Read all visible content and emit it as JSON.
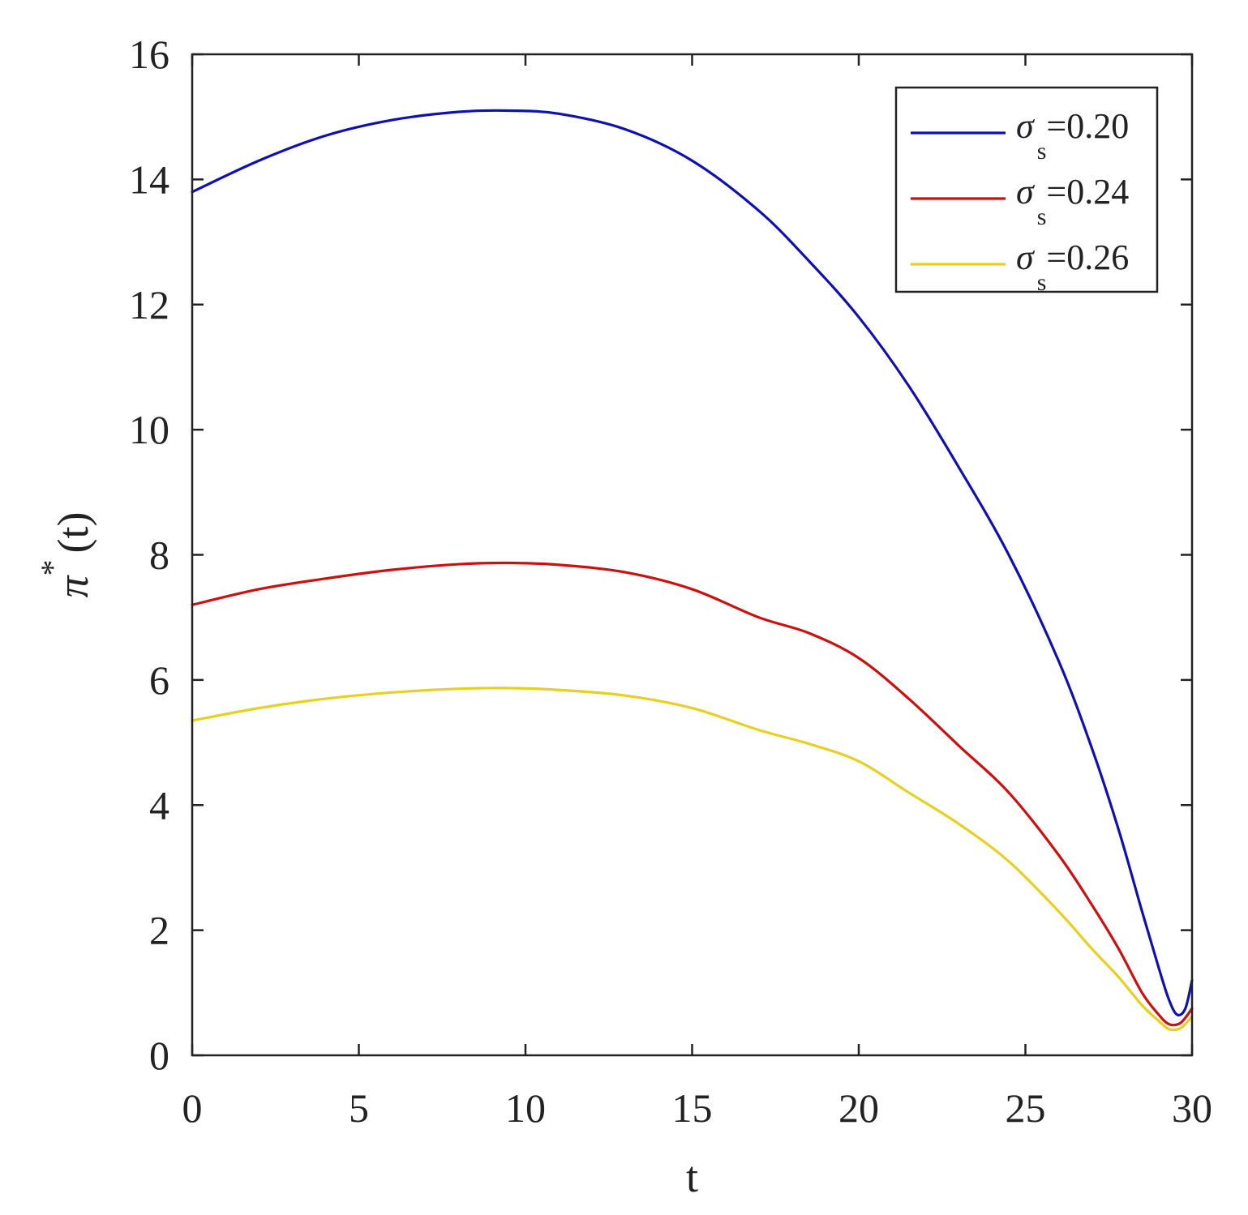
{
  "chart_data": {
    "type": "line",
    "xlabel": "t",
    "ylabel": {
      "symbol": "π",
      "superscript": "*",
      "suffix": "(t)"
    },
    "xlim": [
      0,
      30
    ],
    "ylim": [
      0,
      16
    ],
    "xticks": [
      0,
      5,
      10,
      15,
      20,
      25,
      30
    ],
    "yticks": [
      0,
      2,
      4,
      6,
      8,
      10,
      12,
      14,
      16
    ],
    "grid": false,
    "legend_position": "top-right",
    "series": [
      {
        "name": "σ_s=0.20",
        "legend": {
          "symbol": "σ",
          "sub": "s",
          "value": "=0.20"
        },
        "color": "#1010b0",
        "x": [
          0,
          2,
          4,
          6,
          8,
          9.5,
          11,
          13,
          15,
          17,
          18.5,
          20,
          21.5,
          23,
          24.5,
          26,
          27,
          27.8,
          28.5,
          29,
          29.3,
          29.55,
          29.8,
          30
        ],
        "y": [
          13.8,
          14.3,
          14.7,
          14.95,
          15.08,
          15.1,
          15.05,
          14.8,
          14.3,
          13.5,
          12.7,
          11.8,
          10.7,
          9.4,
          8.0,
          6.3,
          4.9,
          3.6,
          2.3,
          1.4,
          0.9,
          0.65,
          0.75,
          1.2
        ]
      },
      {
        "name": "σ_s=0.24",
        "legend": {
          "symbol": "σ",
          "sub": "s",
          "value": "=0.24"
        },
        "color": "#cc1010",
        "x": [
          0,
          2,
          4,
          6,
          8,
          9.5,
          11,
          13,
          15,
          17,
          18.5,
          20,
          21.5,
          23,
          24.5,
          26,
          27,
          27.8,
          28.5,
          29,
          29.3,
          29.6,
          29.8,
          30
        ],
        "y": [
          7.2,
          7.45,
          7.62,
          7.76,
          7.85,
          7.87,
          7.84,
          7.72,
          7.45,
          7.0,
          6.75,
          6.35,
          5.7,
          4.95,
          4.2,
          3.2,
          2.4,
          1.7,
          1.0,
          0.65,
          0.5,
          0.5,
          0.6,
          0.75
        ]
      },
      {
        "name": "σ_s=0.26",
        "legend": {
          "symbol": "σ",
          "sub": "s",
          "value": "=0.26"
        },
        "color": "#e8d020",
        "x": [
          0,
          2,
          4,
          6,
          8,
          9.5,
          11,
          13,
          15,
          17,
          18.5,
          20,
          21.5,
          23,
          24.5,
          26,
          27,
          27.8,
          28.5,
          29,
          29.3,
          29.6,
          29.8,
          30
        ],
        "y": [
          5.35,
          5.55,
          5.7,
          5.8,
          5.86,
          5.87,
          5.84,
          5.75,
          5.55,
          5.2,
          4.98,
          4.7,
          4.2,
          3.7,
          3.1,
          2.3,
          1.7,
          1.25,
          0.8,
          0.55,
          0.42,
          0.42,
          0.5,
          0.62
        ]
      }
    ]
  }
}
